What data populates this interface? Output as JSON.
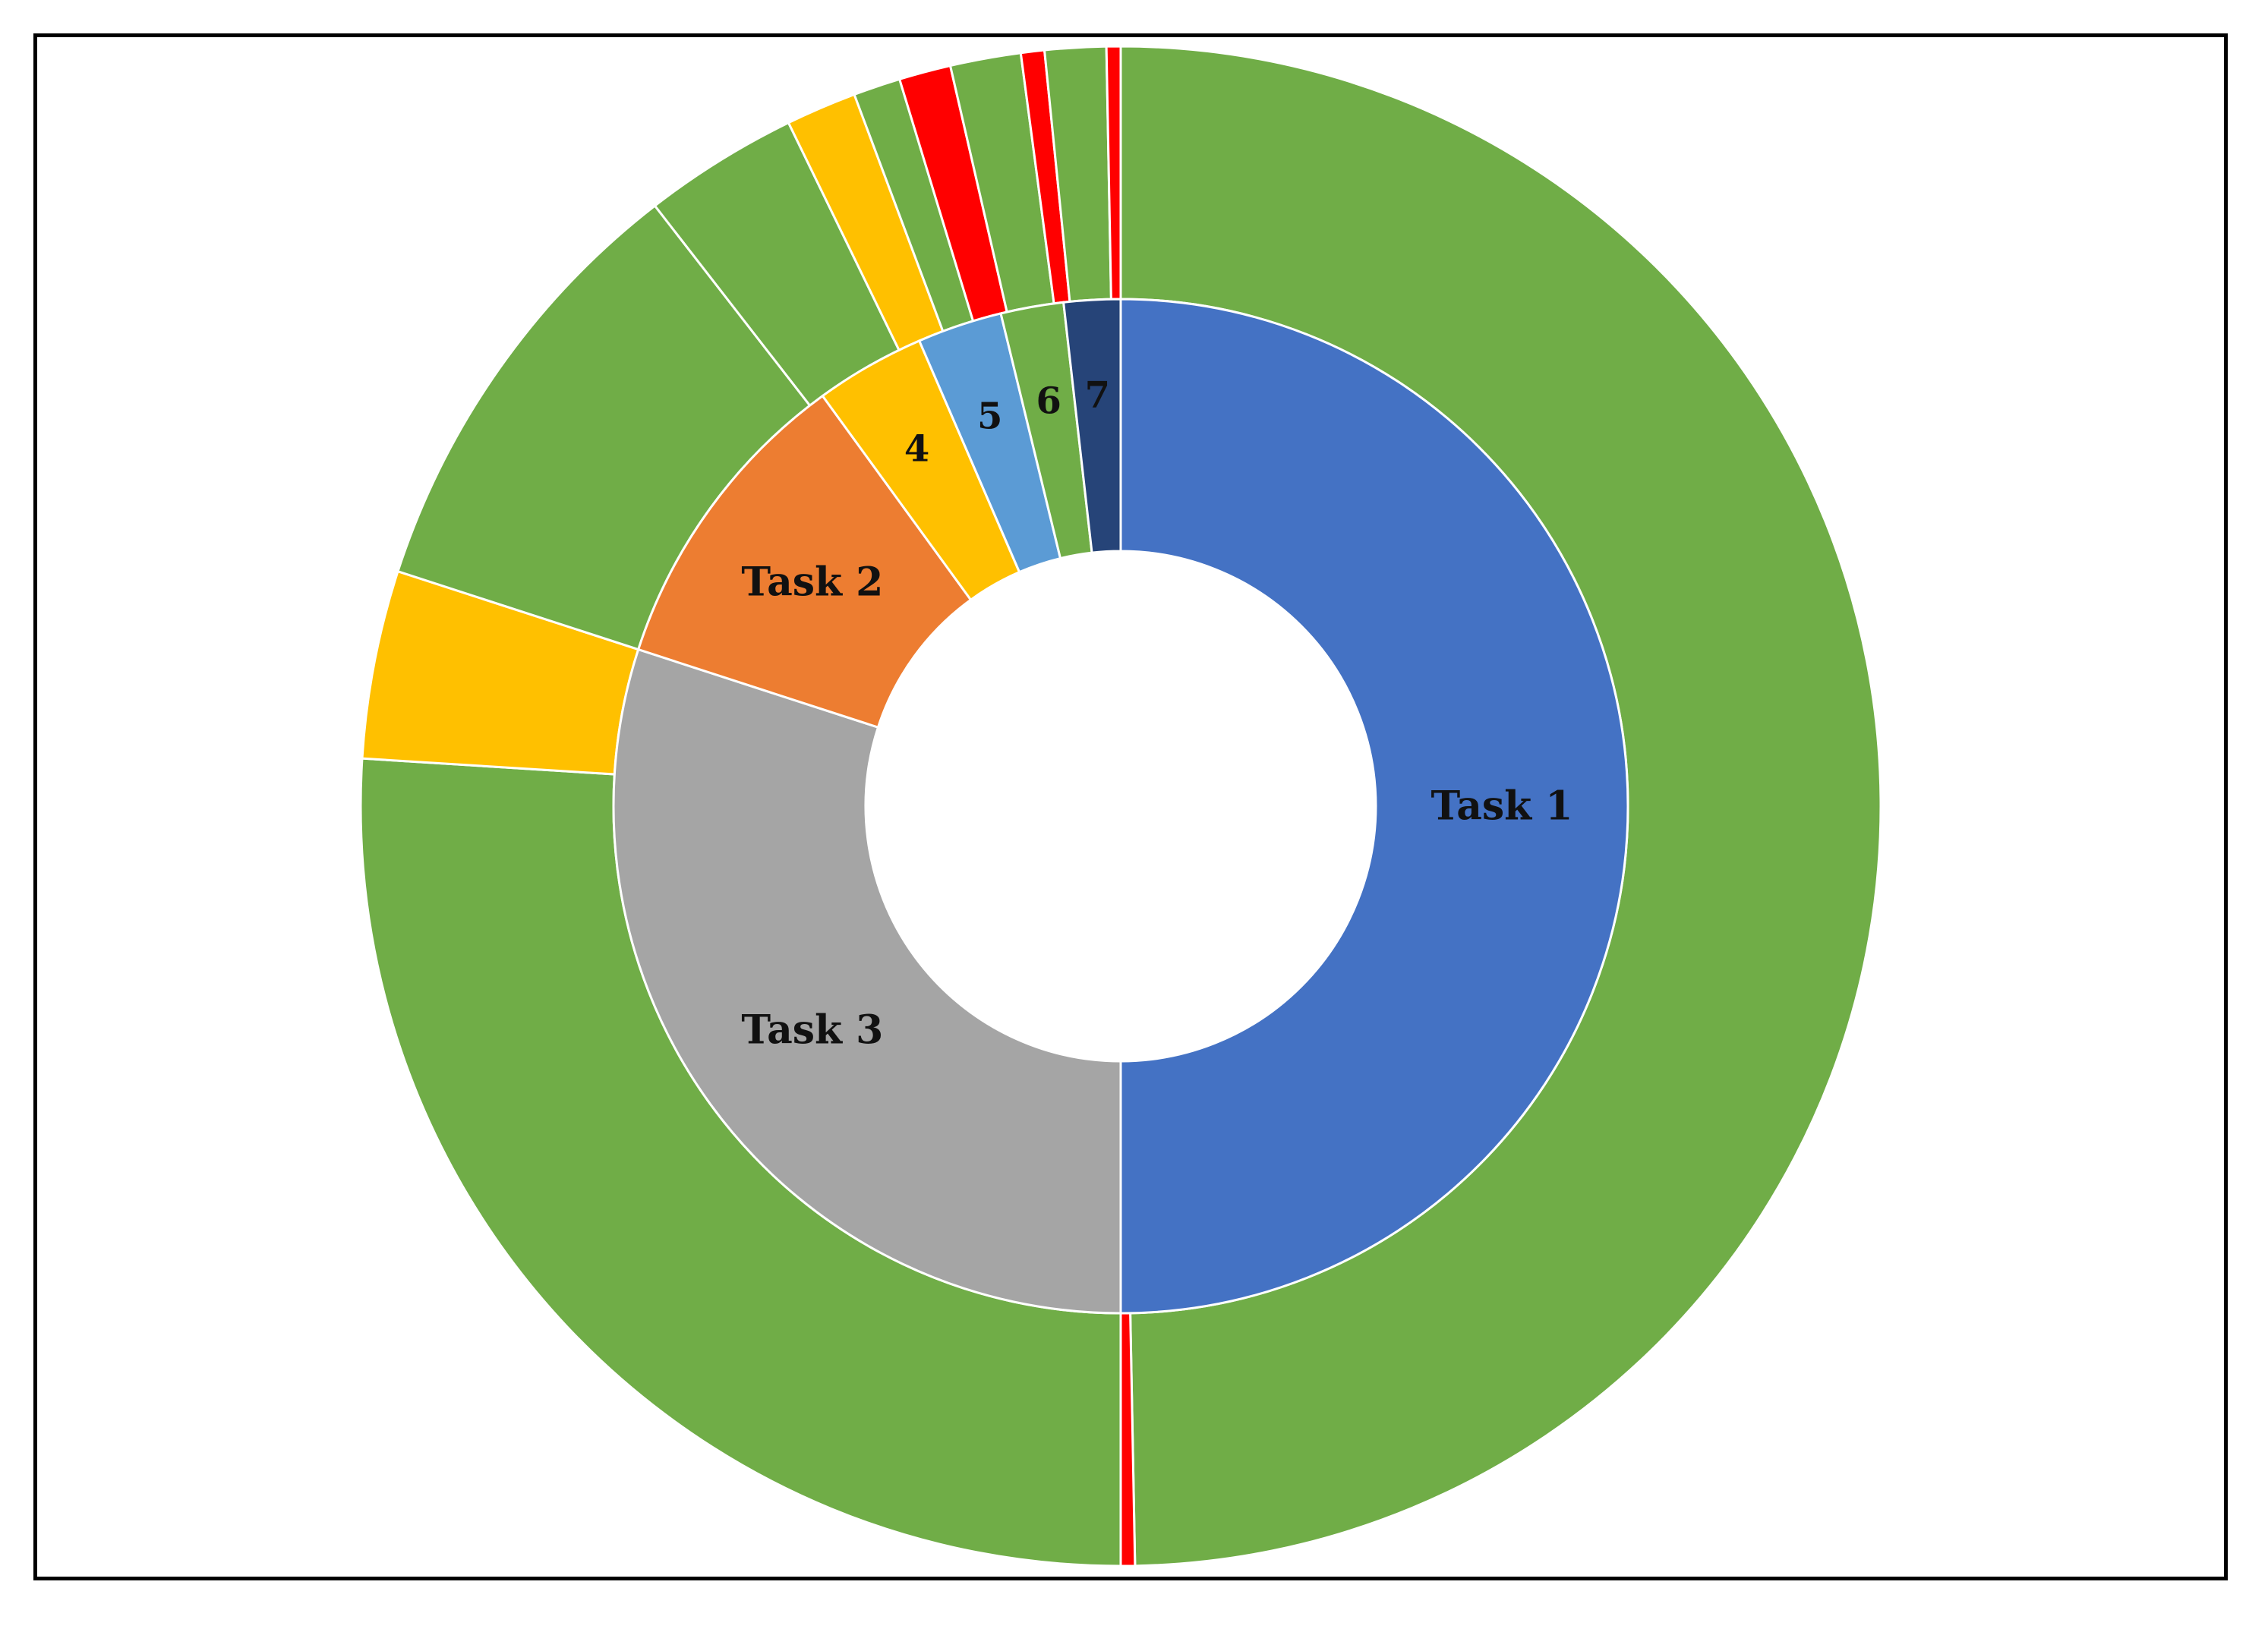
{
  "chart_data": {
    "type": "pie",
    "variant": "sunburst-donut",
    "title": "",
    "rings": [
      {
        "ring": "inner",
        "segments": [
          {
            "label": "Task 1",
            "value": 50.0,
            "color": "#4472C4"
          },
          {
            "label": "Task 3",
            "value": 30.0,
            "color": "#A5A5A5"
          },
          {
            "label": "Task 2",
            "value": 10.0,
            "color": "#ED7D31"
          },
          {
            "label": "4",
            "value": 3.5,
            "color": "#FFC000"
          },
          {
            "label": "5",
            "value": 2.7,
            "color": "#5B9BD5"
          },
          {
            "label": "6",
            "value": 2.0,
            "color": "#70AD47"
          },
          {
            "label": "7",
            "value": 1.8,
            "color": "#264478"
          }
        ]
      },
      {
        "ring": "outer",
        "segments": [
          {
            "value": 49.7,
            "color": "#70AD47"
          },
          {
            "value": 0.3,
            "color": "#FF0000"
          },
          {
            "value": 26.0,
            "color": "#70AD47"
          },
          {
            "value": 4.0,
            "color": "#FFC000"
          },
          {
            "value": 9.5,
            "color": "#70AD47"
          },
          {
            "value": 3.3,
            "color": "#70AD47"
          },
          {
            "value": 1.5,
            "color": "#FFC000"
          },
          {
            "value": 1.0,
            "color": "#70AD47"
          },
          {
            "value": 1.1,
            "color": "#FF0000"
          },
          {
            "value": 1.5,
            "color": "#70AD47"
          },
          {
            "value": 0.5,
            "color": "#FF0000"
          },
          {
            "value": 1.3,
            "color": "#70AD47"
          },
          {
            "value": 0.3,
            "color": "#FF0000"
          }
        ]
      }
    ],
    "direction": "clockwise",
    "start_angle_deg": 0,
    "legend": "none",
    "separator_color": "#FFFFFF"
  }
}
